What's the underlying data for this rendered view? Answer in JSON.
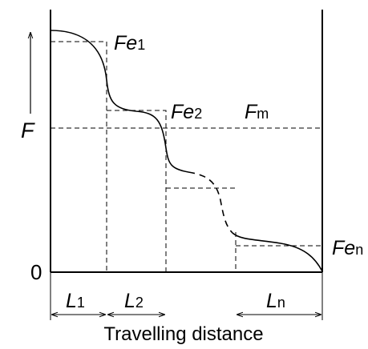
{
  "labels": {
    "y_axis": "F",
    "origin": "0",
    "fe1": {
      "main": "Fe",
      "sub": "1"
    },
    "fe2": {
      "main": "Fe",
      "sub": "2"
    },
    "fm": {
      "main": "F",
      "sub": "m"
    },
    "fen": {
      "main": "Fe",
      "sub": "n"
    },
    "l1": {
      "main": "L",
      "sub": "1"
    },
    "l2": {
      "main": "L",
      "sub": "2"
    },
    "ln": {
      "main": "L",
      "sub": "n"
    },
    "x_axis": "Travelling distance"
  },
  "colors": {
    "stroke": "#000000",
    "background": "#ffffff"
  }
}
